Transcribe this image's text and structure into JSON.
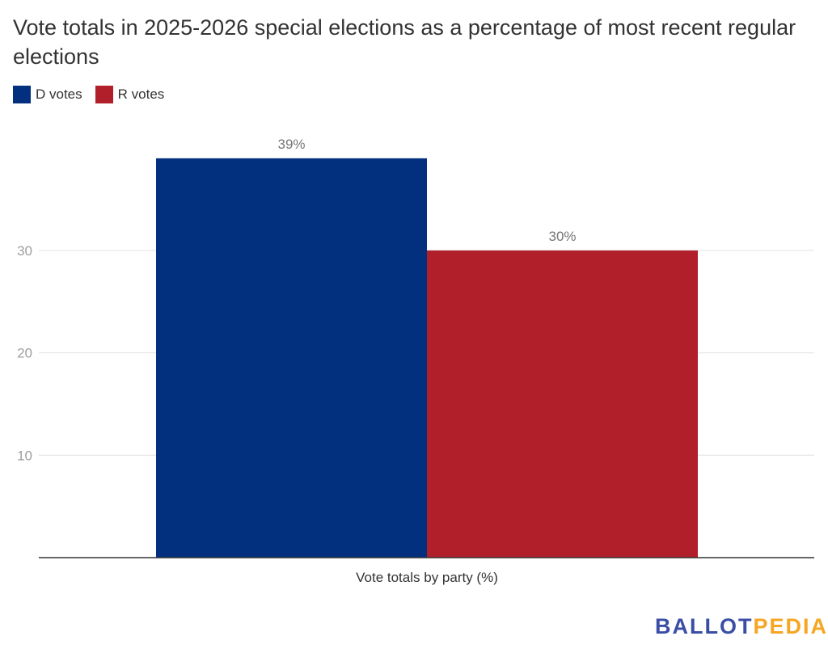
{
  "chart_data": {
    "type": "bar",
    "title": "Vote totals in 2025-2026 special elections as a percentage of most recent regular elections",
    "xlabel": "Vote totals by party (%)",
    "ylabel": "",
    "categories": [
      "Vote totals by party (%)"
    ],
    "series": [
      {
        "name": "D votes",
        "values": [
          39
        ],
        "label": "39%",
        "color": "#03307e"
      },
      {
        "name": "R votes",
        "values": [
          30
        ],
        "label": "30%",
        "color": "#b01f2a"
      }
    ],
    "ylim": [
      0,
      39
    ],
    "yticks": [
      10,
      20,
      30
    ],
    "grid": true,
    "legend": "top-left"
  },
  "logo": {
    "part1": "BALLOT",
    "part2": "PEDIA",
    "color1": "#3a4ea6",
    "color2": "#f5a623"
  }
}
